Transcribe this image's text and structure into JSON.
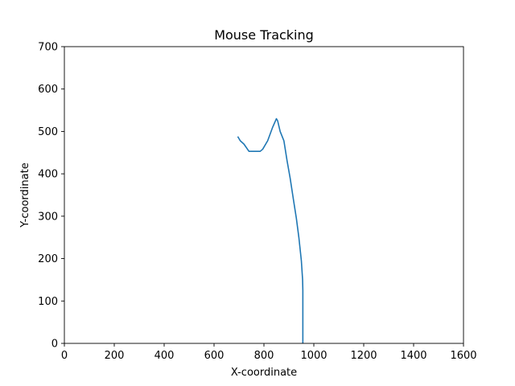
{
  "chart_data": {
    "type": "line",
    "title": "Mouse Tracking",
    "xlabel": "X-coordinate",
    "ylabel": "Y-coordinate",
    "xlim": [
      0,
      1600
    ],
    "ylim": [
      0,
      700
    ],
    "xticks": [
      0,
      200,
      400,
      600,
      800,
      1000,
      1200,
      1400,
      1600
    ],
    "yticks": [
      0,
      100,
      200,
      300,
      400,
      500,
      600,
      700
    ],
    "grid": false,
    "series": [
      {
        "color": "#1f77b4",
        "x": [
          695,
          705,
          720,
          740,
          760,
          785,
          795,
          815,
          835,
          850,
          855,
          865,
          880,
          893,
          905,
          918,
          930,
          940,
          950,
          955,
          956,
          956,
          956,
          956
        ],
        "y": [
          488,
          478,
          470,
          453,
          453,
          453,
          458,
          478,
          510,
          530,
          525,
          500,
          478,
          430,
          390,
          340,
          295,
          250,
          195,
          150,
          125,
          80,
          30,
          0
        ]
      }
    ]
  }
}
